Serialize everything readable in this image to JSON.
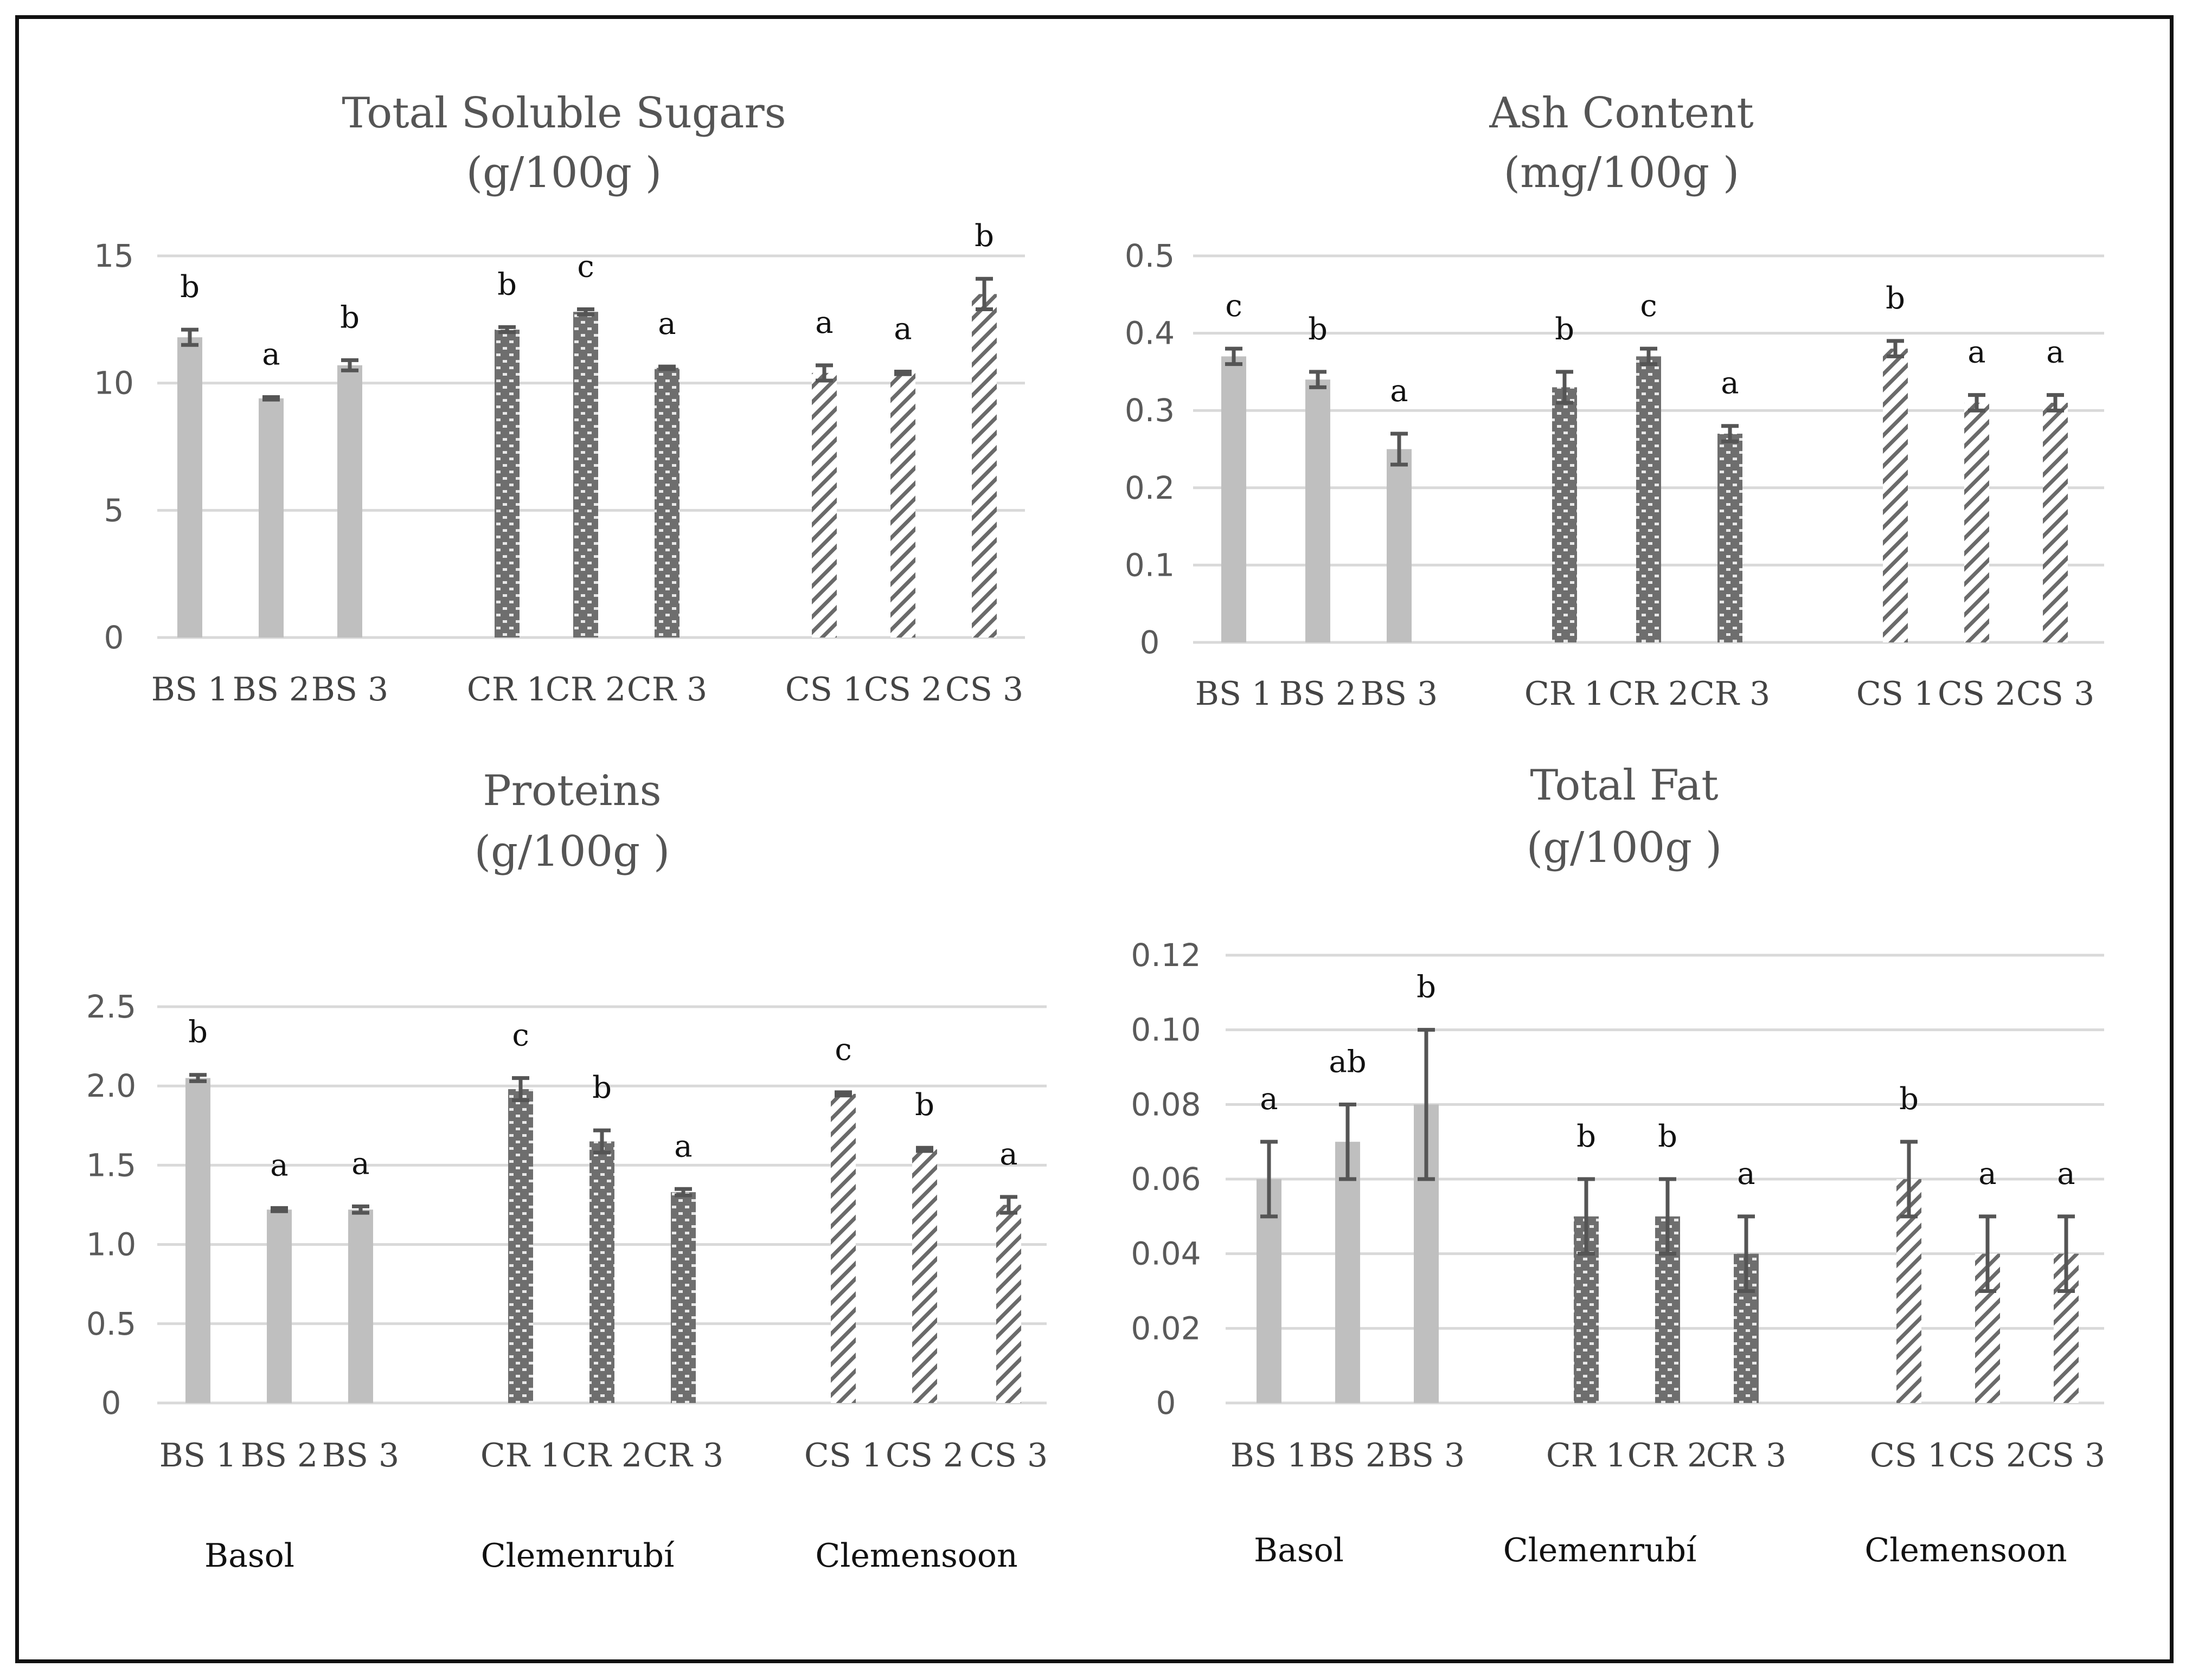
{
  "chart_data": [
    {
      "type": "bar",
      "title": "Total Soluble Sugars",
      "unit": "(g/100g )",
      "categories": [
        "BS 1",
        "BS 2",
        "BS 3",
        "CR 1",
        "CR 2",
        "CR 3",
        "CS 1",
        "CS 2",
        "CS 3"
      ],
      "values": [
        11.8,
        9.4,
        10.7,
        12.1,
        12.8,
        10.6,
        10.4,
        10.4,
        13.5
      ],
      "errors": [
        0.3,
        0.05,
        0.2,
        0.1,
        0.1,
        0.05,
        0.3,
        0.05,
        0.6
      ],
      "letters": [
        "b",
        "a",
        "b",
        "b",
        "c",
        "a",
        "a",
        "a",
        "b"
      ],
      "yticks": [
        "0",
        "5",
        "10",
        "15"
      ],
      "ylim": [
        0,
        15
      ],
      "group_labels": []
    },
    {
      "type": "bar",
      "title": "Ash Content",
      "unit": "(mg/100g )",
      "categories": [
        "BS 1",
        "BS 2",
        "BS 3",
        "CR 1",
        "CR 2",
        "CR 3",
        "CS 1",
        "CS 2",
        "CS 3"
      ],
      "values": [
        0.37,
        0.34,
        0.25,
        0.33,
        0.37,
        0.27,
        0.38,
        0.31,
        0.31
      ],
      "errors": [
        0.01,
        0.01,
        0.02,
        0.02,
        0.01,
        0.01,
        0.01,
        0.01,
        0.01
      ],
      "letters": [
        "c",
        "b",
        "a",
        "b",
        "c",
        "a",
        "b",
        "a",
        "a"
      ],
      "yticks": [
        "0",
        "0.1",
        "0.2",
        "0.3",
        "0.4",
        "0.5"
      ],
      "ylim": [
        0,
        0.5
      ],
      "group_labels": []
    },
    {
      "type": "bar",
      "title": "Proteins",
      "unit": "(g/100g )",
      "categories": [
        "BS 1",
        "BS 2",
        "BS 3",
        "CR 1",
        "CR 2",
        "CR 3",
        "CS 1",
        "CS 2",
        "CS 3"
      ],
      "values": [
        2.05,
        1.22,
        1.22,
        1.98,
        1.65,
        1.33,
        1.95,
        1.6,
        1.25
      ],
      "errors": [
        0.02,
        0.01,
        0.02,
        0.07,
        0.07,
        0.02,
        0.01,
        0.01,
        0.05
      ],
      "letters": [
        "b",
        "a",
        "a",
        "c",
        "b",
        "a",
        "c",
        "b",
        "a"
      ],
      "yticks": [
        "0",
        "0.5",
        "1.0",
        "1.5",
        "2.0",
        "2.5"
      ],
      "ylim": [
        0,
        2.5
      ],
      "group_labels": [
        "Basol",
        "Clemenrubí",
        "Clemensoon"
      ]
    },
    {
      "type": "bar",
      "title": "Total Fat",
      "unit": "(g/100g )",
      "categories": [
        "BS 1",
        "BS 2",
        "BS 3",
        "CR 1",
        "CR 2",
        "CR 3",
        "CS 1",
        "CS 2",
        "CS 3"
      ],
      "values": [
        0.06,
        0.07,
        0.08,
        0.05,
        0.05,
        0.04,
        0.06,
        0.04,
        0.04
      ],
      "errors": [
        0.01,
        0.01,
        0.02,
        0.01,
        0.01,
        0.01,
        0.01,
        0.01,
        0.01
      ],
      "letters": [
        "a",
        "ab",
        "b",
        "b",
        "b",
        "a",
        "b",
        "a",
        "a"
      ],
      "yticks": [
        "0",
        "0.02",
        "0.04",
        "0.06",
        "0.08",
        "0.10",
        "0.12"
      ],
      "ylim": [
        0,
        0.12
      ],
      "group_labels": [
        "Basol",
        "Clemenrubí",
        "Clemensoon"
      ]
    }
  ],
  "colors": {
    "basol": "#bfbfbf",
    "clemenrubi": "#7a7a7a",
    "clemensoon": "#6a6a6a",
    "grid": "#d9d9d9",
    "error_bar": "#555555"
  }
}
